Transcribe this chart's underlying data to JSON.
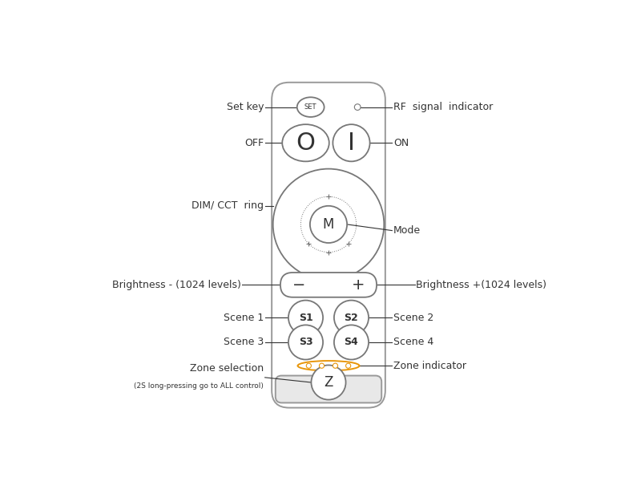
{
  "bg_color": "#ffffff",
  "remote_color": "#ffffff",
  "remote_border_color": "#999999",
  "button_color": "#ffffff",
  "button_border_color": "#777777",
  "text_color": "#333333",
  "orange_color": "#e8960a",
  "labels": {
    "set_key": "Set key",
    "rf_signal": "RF  signal  indicator",
    "off": "OFF",
    "on": "ON",
    "dim_cct": "DIM/ CCT  ring",
    "mode": "Mode",
    "brightness_minus": "Brightness - (1024 levels)",
    "brightness_plus": "Brightness +(1024 levels)",
    "scene1": "Scene 1",
    "scene2": "Scene 2",
    "scene3": "Scene 3",
    "scene4": "Scene 4",
    "zone_indicator": "Zone indicator",
    "zone_selection": "Zone selection",
    "zone_sub": "(2S long-pressing go to ALL control)"
  }
}
